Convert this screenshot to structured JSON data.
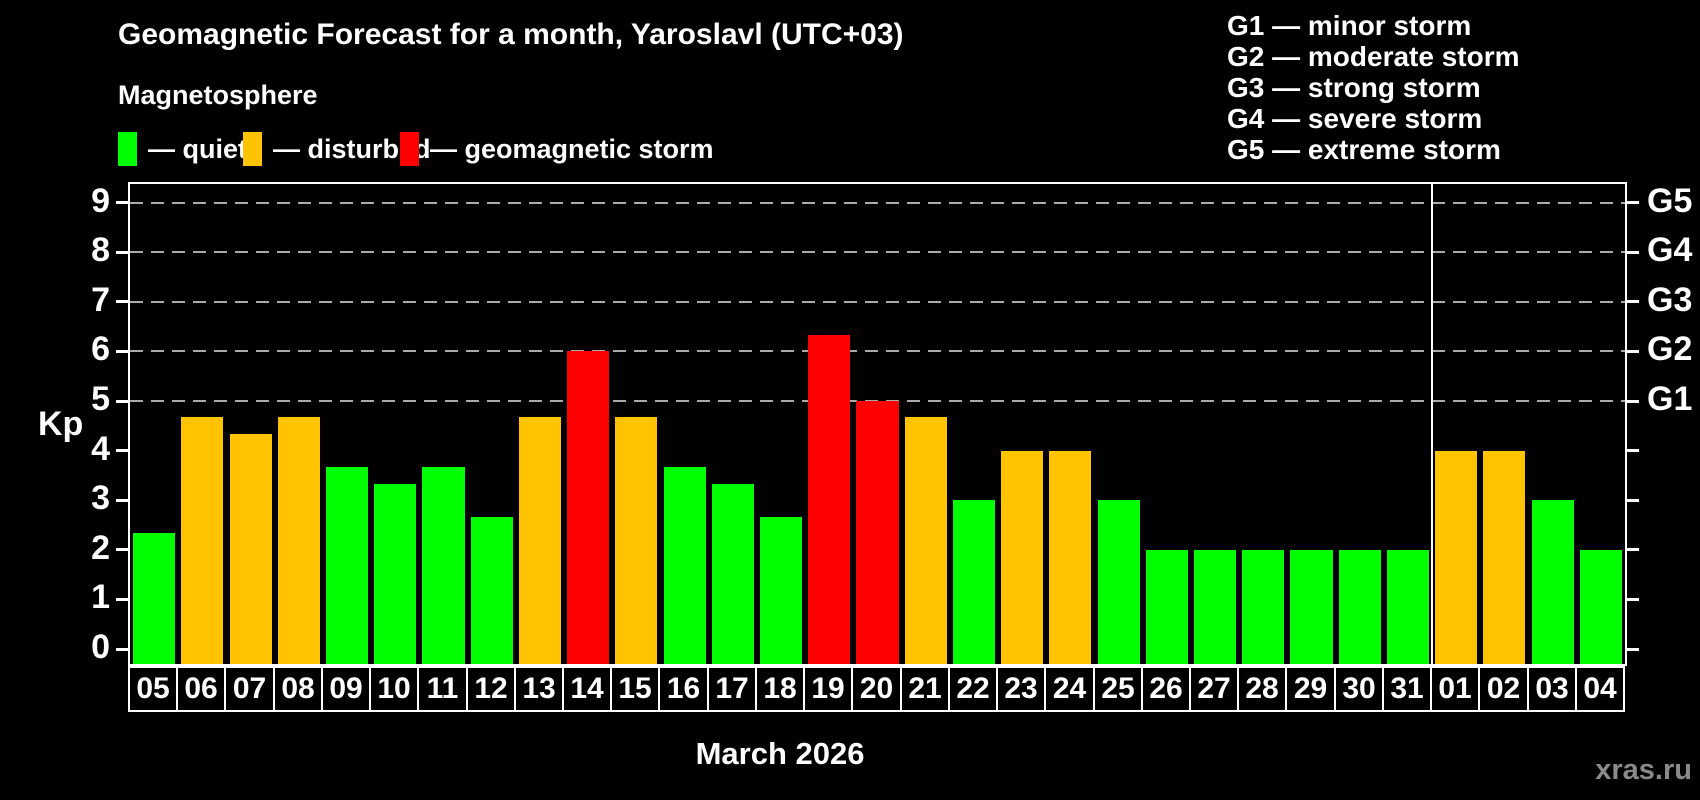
{
  "title": "Geomagnetic Forecast for a month, Yaroslavl (UTC+03)",
  "subtitle": "Magnetosphere",
  "legend": {
    "items": [
      {
        "name": "quiet",
        "label": "— quiet",
        "color": "#00ff00"
      },
      {
        "name": "disturbed",
        "label": "— disturbed",
        "color": "#ffc300"
      },
      {
        "name": "storm",
        "label": "— geomagnetic storm",
        "color": "#ff0000"
      }
    ]
  },
  "storm_scale_legend": [
    {
      "code": "G1",
      "label": "G1 — minor storm"
    },
    {
      "code": "G2",
      "label": "G2 — moderate storm"
    },
    {
      "code": "G3",
      "label": "G3 — strong storm"
    },
    {
      "code": "G4",
      "label": "G4 — severe storm"
    },
    {
      "code": "G5",
      "label": "G5 — extreme storm"
    }
  ],
  "watermark": "xras.ru",
  "chart_data": {
    "type": "bar",
    "title": "Geomagnetic Forecast for a month, Yaroslavl (UTC+03)",
    "xlabel": "March 2026",
    "ylabel": "Kp",
    "ylim": [
      0,
      9.4
    ],
    "yticks": [
      0,
      1,
      2,
      3,
      4,
      5,
      6,
      7,
      8,
      9
    ],
    "gridlines_at": [
      5,
      6,
      7,
      8,
      9
    ],
    "grid": true,
    "legend_position": "top",
    "right_axis": [
      {
        "value": 5,
        "label": "G1"
      },
      {
        "value": 6,
        "label": "G2"
      },
      {
        "value": 7,
        "label": "G3"
      },
      {
        "value": 8,
        "label": "G4"
      },
      {
        "value": 9,
        "label": "G5"
      }
    ],
    "month_divider_after_index": 26,
    "categories": [
      "05",
      "06",
      "07",
      "08",
      "09",
      "10",
      "11",
      "12",
      "13",
      "14",
      "15",
      "16",
      "17",
      "18",
      "19",
      "20",
      "21",
      "22",
      "23",
      "24",
      "25",
      "26",
      "27",
      "28",
      "29",
      "30",
      "31",
      "01",
      "02",
      "03",
      "04"
    ],
    "days": [
      {
        "date": "05",
        "kp": 2.33,
        "status": "quiet"
      },
      {
        "date": "06",
        "kp": 4.67,
        "status": "disturbed"
      },
      {
        "date": "07",
        "kp": 4.33,
        "status": "disturbed"
      },
      {
        "date": "08",
        "kp": 4.67,
        "status": "disturbed"
      },
      {
        "date": "09",
        "kp": 3.67,
        "status": "quiet"
      },
      {
        "date": "10",
        "kp": 3.33,
        "status": "quiet"
      },
      {
        "date": "11",
        "kp": 3.67,
        "status": "quiet"
      },
      {
        "date": "12",
        "kp": 2.67,
        "status": "quiet"
      },
      {
        "date": "13",
        "kp": 4.67,
        "status": "disturbed"
      },
      {
        "date": "14",
        "kp": 6.0,
        "status": "storm"
      },
      {
        "date": "15",
        "kp": 4.67,
        "status": "disturbed"
      },
      {
        "date": "16",
        "kp": 3.67,
        "status": "quiet"
      },
      {
        "date": "17",
        "kp": 3.33,
        "status": "quiet"
      },
      {
        "date": "18",
        "kp": 2.67,
        "status": "quiet"
      },
      {
        "date": "19",
        "kp": 6.33,
        "status": "storm"
      },
      {
        "date": "20",
        "kp": 5.0,
        "status": "storm"
      },
      {
        "date": "21",
        "kp": 4.67,
        "status": "disturbed"
      },
      {
        "date": "22",
        "kp": 3.0,
        "status": "quiet"
      },
      {
        "date": "23",
        "kp": 4.0,
        "status": "disturbed"
      },
      {
        "date": "24",
        "kp": 4.0,
        "status": "disturbed"
      },
      {
        "date": "25",
        "kp": 3.0,
        "status": "quiet"
      },
      {
        "date": "26",
        "kp": 2.0,
        "status": "quiet"
      },
      {
        "date": "27",
        "kp": 2.0,
        "status": "quiet"
      },
      {
        "date": "28",
        "kp": 2.0,
        "status": "quiet"
      },
      {
        "date": "29",
        "kp": 2.0,
        "status": "quiet"
      },
      {
        "date": "30",
        "kp": 2.0,
        "status": "quiet"
      },
      {
        "date": "31",
        "kp": 2.0,
        "status": "quiet"
      },
      {
        "date": "01",
        "kp": 4.0,
        "status": "disturbed"
      },
      {
        "date": "02",
        "kp": 4.0,
        "status": "disturbed"
      },
      {
        "date": "03",
        "kp": 3.0,
        "status": "quiet"
      },
      {
        "date": "04",
        "kp": 2.0,
        "status": "quiet"
      }
    ]
  }
}
